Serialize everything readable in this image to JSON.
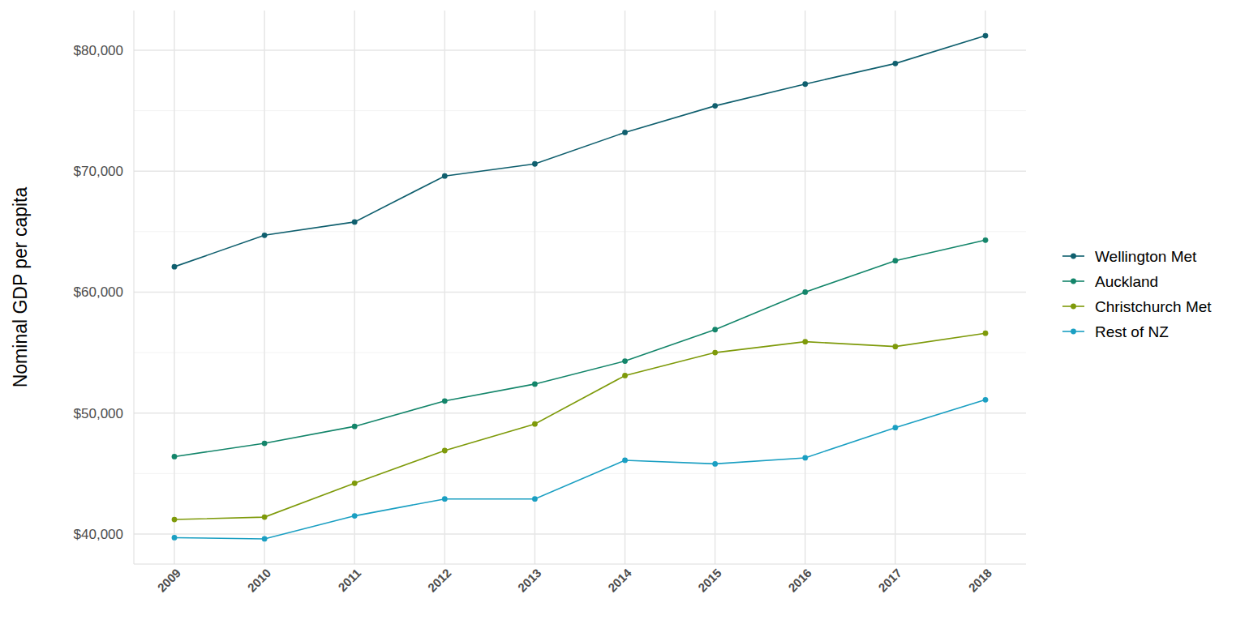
{
  "chart_data": {
    "type": "line",
    "y_label": "Nominal GDP per capita",
    "x": [
      2009,
      2010,
      2011,
      2012,
      2013,
      2014,
      2015,
      2016,
      2017,
      2018
    ],
    "xlim": [
      2008.55,
      2018.45
    ],
    "xticks": [
      2009,
      2010,
      2011,
      2012,
      2013,
      2014,
      2015,
      2016,
      2017,
      2018
    ],
    "ylim": [
      37520,
      83280
    ],
    "yticks": [
      {
        "value": 40000,
        "label": "$40,000"
      },
      {
        "value": 50000,
        "label": "$50,000"
      },
      {
        "value": 60000,
        "label": "$60,000"
      },
      {
        "value": 70000,
        "label": "$70,000"
      },
      {
        "value": 80000,
        "label": "$80,000"
      }
    ],
    "grid": true,
    "legend": "right",
    "marker": "circle",
    "series": [
      {
        "name": "Wellington Met",
        "color": "#0f5f6e",
        "values": [
          62100,
          64700,
          65800,
          69600,
          70600,
          73200,
          75400,
          77200,
          78900,
          81200
        ]
      },
      {
        "name": "Auckland",
        "color": "#13856a",
        "values": [
          46400,
          47500,
          48900,
          51000,
          52400,
          54300,
          56900,
          60000,
          62600,
          64300
        ]
      },
      {
        "name": "Christchurch Met",
        "color": "#7e9a0a",
        "values": [
          41200,
          41400,
          44200,
          46900,
          49100,
          53100,
          55000,
          55900,
          55500,
          56600
        ]
      },
      {
        "name": "Rest of NZ",
        "color": "#1a9fc2",
        "values": [
          39700,
          39600,
          41500,
          42900,
          42900,
          46100,
          45800,
          46300,
          48800,
          51100
        ]
      }
    ]
  }
}
